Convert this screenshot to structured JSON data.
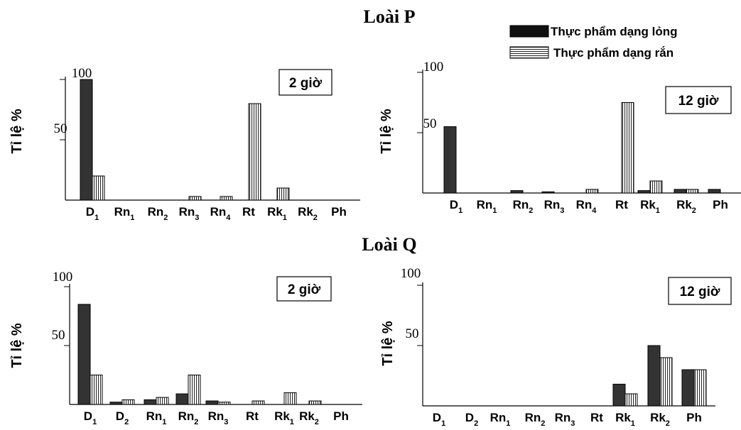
{
  "sections": [
    {
      "title": "Loài P"
    },
    {
      "title": "Loài Q"
    }
  ],
  "legend": {
    "liquid": "Thực phẩm dạng lỏng",
    "solid": "Thực phẩm dạng rắn"
  },
  "colors": {
    "liquid_fill": "#333333",
    "solid_fill": "#ffffff",
    "stroke": "#000000"
  },
  "chart_data": [
    {
      "type": "bar",
      "group": "Loài P",
      "panel_label": "2 giờ",
      "ylabel": "Tỉ lệ %",
      "yticks": [
        "100",
        "50"
      ],
      "ylim": [
        0,
        100
      ],
      "categories": [
        "D1",
        "Rn1",
        "Rn2",
        "Rn3",
        "Rn4",
        "Rt",
        "Rk1",
        "Rk2",
        "Ph"
      ],
      "series": [
        {
          "name": "Thực phẩm dạng lỏng",
          "values": [
            100,
            0,
            0,
            0,
            0,
            0,
            0,
            0,
            0
          ]
        },
        {
          "name": "Thực phẩm dạng rắn",
          "values": [
            20,
            0,
            0,
            3,
            3,
            80,
            10,
            0,
            0
          ]
        }
      ]
    },
    {
      "type": "bar",
      "group": "Loài P",
      "panel_label": "12 giờ",
      "ylabel": "Tỉ lệ %",
      "yticks": [
        "100",
        "50"
      ],
      "ylim": [
        0,
        100
      ],
      "categories": [
        "D1",
        "Rn1",
        "Rn2",
        "Rn3",
        "Rn4",
        "Rt",
        "Rk1",
        "Rk2",
        "Ph"
      ],
      "series": [
        {
          "name": "Thực phẩm dạng lỏng",
          "values": [
            55,
            0,
            2,
            1,
            0,
            0,
            2,
            3,
            3
          ]
        },
        {
          "name": "Thực phẩm dạng rắn",
          "values": [
            0,
            0,
            0,
            0,
            3,
            75,
            10,
            3,
            0
          ]
        }
      ]
    },
    {
      "type": "bar",
      "group": "Loài Q",
      "panel_label": "2 giờ",
      "ylabel": "Tỉ lệ %",
      "yticks": [
        "100",
        "50"
      ],
      "ylim": [
        0,
        100
      ],
      "categories": [
        "D1",
        "D2",
        "Rn1",
        "Rn2",
        "Rn3",
        "Rt",
        "Rk1",
        "Rk2",
        "Ph"
      ],
      "series": [
        {
          "name": "Thực phẩm dạng lỏng",
          "values": [
            85,
            2,
            4,
            9,
            3,
            0,
            0,
            0,
            0
          ]
        },
        {
          "name": "Thực phẩm dạng rắn",
          "values": [
            25,
            4,
            6,
            25,
            2,
            3,
            10,
            3,
            0
          ]
        }
      ]
    },
    {
      "type": "bar",
      "group": "Loài Q",
      "panel_label": "12 giờ",
      "ylabel": "Tỉ lệ %",
      "yticks": [
        "100",
        "50"
      ],
      "ylim": [
        0,
        100
      ],
      "categories": [
        "D1",
        "D2",
        "Rn1",
        "Rn2",
        "Rn3",
        "Rt",
        "Rk1",
        "Rk2",
        "Ph"
      ],
      "series": [
        {
          "name": "Thực phẩm dạng lỏng",
          "values": [
            0,
            0,
            0,
            0,
            0,
            0,
            18,
            50,
            30
          ]
        },
        {
          "name": "Thực phẩm dạng rắn",
          "values": [
            0,
            0,
            0,
            0,
            0,
            0,
            10,
            40,
            30
          ]
        }
      ]
    }
  ]
}
